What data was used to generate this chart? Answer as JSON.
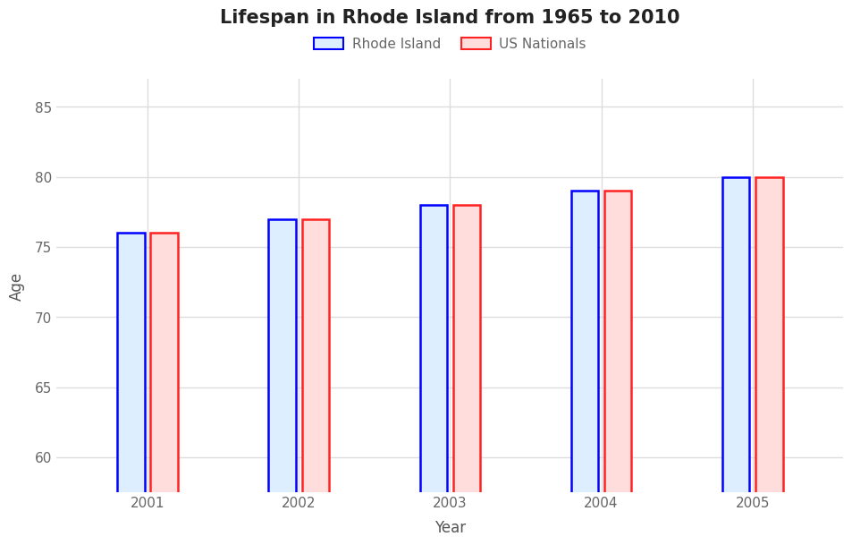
{
  "title": "Lifespan in Rhode Island from 1965 to 2010",
  "xlabel": "Year",
  "ylabel": "Age",
  "years": [
    2001,
    2002,
    2003,
    2004,
    2005
  ],
  "rhode_island": [
    76.0,
    77.0,
    78.0,
    79.0,
    80.0
  ],
  "us_nationals": [
    76.0,
    77.0,
    78.0,
    79.0,
    80.0
  ],
  "ylim": [
    57.5,
    87
  ],
  "yticks": [
    60,
    65,
    70,
    75,
    80,
    85
  ],
  "bar_width": 0.18,
  "bar_gap": 0.04,
  "ri_face_color": "#ddeeff",
  "ri_edge_color": "#0000ff",
  "us_face_color": "#ffdddd",
  "us_edge_color": "#ff2222",
  "background_color": "#ffffff",
  "grid_color": "#dddddd",
  "title_fontsize": 15,
  "label_fontsize": 12,
  "tick_fontsize": 11,
  "legend_fontsize": 11,
  "tick_color": "#666666",
  "label_color": "#555555",
  "title_color": "#222222"
}
